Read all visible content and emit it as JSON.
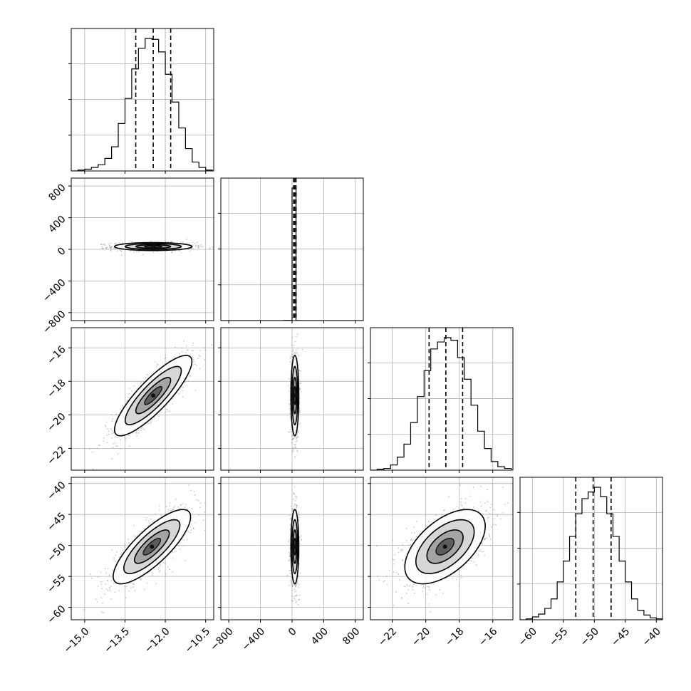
{
  "chart_data": {
    "type": "corner",
    "parameters": 4,
    "axes": {
      "p0": {
        "range": [
          -15.5,
          -10.2
        ],
        "ticks": [
          "−15.0",
          "−13.5",
          "−12.0",
          "−10.5"
        ],
        "tick_values": [
          -15.0,
          -13.5,
          -12.0,
          -10.5
        ]
      },
      "p1": {
        "range": [
          -900,
          900
        ],
        "ticks": [
          "−800",
          "−400",
          "0",
          "400",
          "800"
        ],
        "tick_values": [
          -800,
          -400,
          0,
          400,
          800
        ]
      },
      "p2": {
        "range": [
          -23.3,
          -14.8
        ],
        "ticks": [
          "−22",
          "−20",
          "−18",
          "−16"
        ],
        "tick_values": [
          -22,
          -20,
          -18,
          -16
        ]
      },
      "p3": {
        "range": [
          -62,
          -39
        ],
        "ticks": [
          "−60",
          "−55",
          "−50",
          "−45",
          "−40"
        ],
        "tick_values": [
          -60,
          -55,
          -50,
          -45,
          -40
        ]
      }
    },
    "quantiles": {
      "p0": [
        -13.1,
        -12.45,
        -11.8
      ],
      "p1": [
        20,
        35,
        50
      ],
      "p2": [
        -19.8,
        -18.8,
        -17.8
      ],
      "p3": [
        -53,
        -50.2,
        -47.3
      ]
    },
    "histograms": {
      "p0": {
        "edges": [
          -15.5,
          -15.25,
          -15.0,
          -14.75,
          -14.5,
          -14.25,
          -14.0,
          -13.75,
          -13.5,
          -13.25,
          -13.0,
          -12.75,
          -12.5,
          -12.25,
          -12.0,
          -11.75,
          -11.5,
          -11.25,
          -11.0,
          -10.75,
          -10.5,
          -10.25
        ],
        "counts": [
          0,
          1,
          2,
          4,
          7,
          14,
          27,
          53,
          81,
          114,
          137,
          148,
          147,
          133,
          108,
          77,
          48,
          25,
          10,
          4,
          1
        ]
      },
      "p1": {
        "edges": [
          -900,
          -700,
          -500,
          -300,
          -100,
          0,
          50,
          100,
          300,
          500,
          700,
          900
        ],
        "counts": [
          0,
          0,
          0,
          0,
          3,
          2000,
          2,
          0,
          0,
          0,
          0
        ]
      },
      "p2": {
        "edges": [
          -23.3,
          -22.9,
          -22.5,
          -22.1,
          -21.7,
          -21.3,
          -20.9,
          -20.5,
          -20.1,
          -19.7,
          -19.3,
          -18.9,
          -18.5,
          -18.1,
          -17.7,
          -17.3,
          -16.9,
          -16.5,
          -16.1,
          -15.7,
          -15.3,
          -14.9
        ],
        "counts": [
          0,
          1,
          2,
          6,
          15,
          30,
          55,
          85,
          115,
          140,
          148,
          153,
          150,
          130,
          105,
          75,
          45,
          25,
          10,
          4,
          2
        ]
      },
      "p3": {
        "edges": [
          -62,
          -61,
          -60,
          -59,
          -58,
          -57,
          -56,
          -55,
          -54,
          -53,
          -52,
          -51,
          -50,
          -49,
          -48,
          -47,
          -46,
          -45,
          -44,
          -43,
          -42,
          -41,
          -40,
          -39
        ],
        "counts": [
          0,
          1,
          3,
          6,
          12,
          22,
          40,
          62,
          88,
          112,
          128,
          135,
          140,
          130,
          112,
          88,
          62,
          40,
          22,
          10,
          5,
          2,
          1
        ]
      }
    },
    "pair_distributions": {
      "p1_vs_p0": {
        "center": [
          -12.45,
          35
        ],
        "sd": [
          0.72,
          25
        ],
        "corr": 0.0
      },
      "p2_vs_p0": {
        "center": [
          -12.45,
          -18.85
        ],
        "sd": [
          0.72,
          1.2
        ],
        "corr": 0.85
      },
      "p3_vs_p0": {
        "center": [
          -12.5,
          -50.2
        ],
        "sd": [
          0.72,
          3.0
        ],
        "corr": 0.8
      },
      "p2_vs_p1": {
        "center": [
          35,
          -18.85
        ],
        "sd": [
          25,
          1.2
        ],
        "corr": 0.0
      },
      "p3_vs_p1": {
        "center": [
          35,
          -50.2
        ],
        "sd": [
          25,
          3.0
        ],
        "corr": 0.0
      },
      "p3_vs_p2": {
        "center": [
          -18.85,
          -50.2
        ],
        "sd": [
          1.2,
          3.0
        ],
        "corr": 0.55
      }
    }
  }
}
